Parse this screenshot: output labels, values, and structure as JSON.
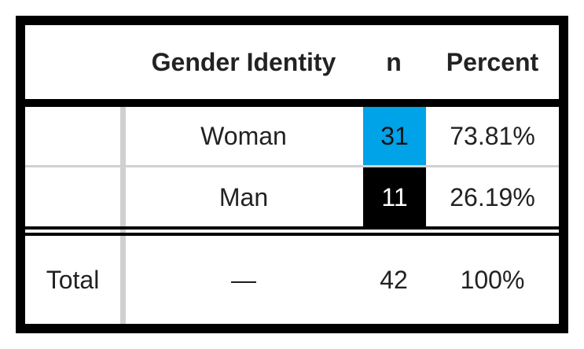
{
  "table": {
    "headers": {
      "category": "",
      "gender": "Gender Identity",
      "n": "n",
      "percent": "Percent"
    },
    "rows": [
      {
        "label": "",
        "gender": "Woman",
        "n": "31",
        "percent": "73.81%",
        "n_fill": "#00a2e8"
      },
      {
        "label": "",
        "gender": "Man",
        "n": "11",
        "percent": "26.19%",
        "n_fill": "#000000"
      }
    ],
    "total": {
      "label": "Total",
      "gender": "—",
      "n": "42",
      "percent": "100%"
    }
  },
  "colors": {
    "frame": "#000000",
    "separator": "#d0d0d0",
    "woman_n_fill": "#00a2e8",
    "man_n_fill": "#000000"
  }
}
